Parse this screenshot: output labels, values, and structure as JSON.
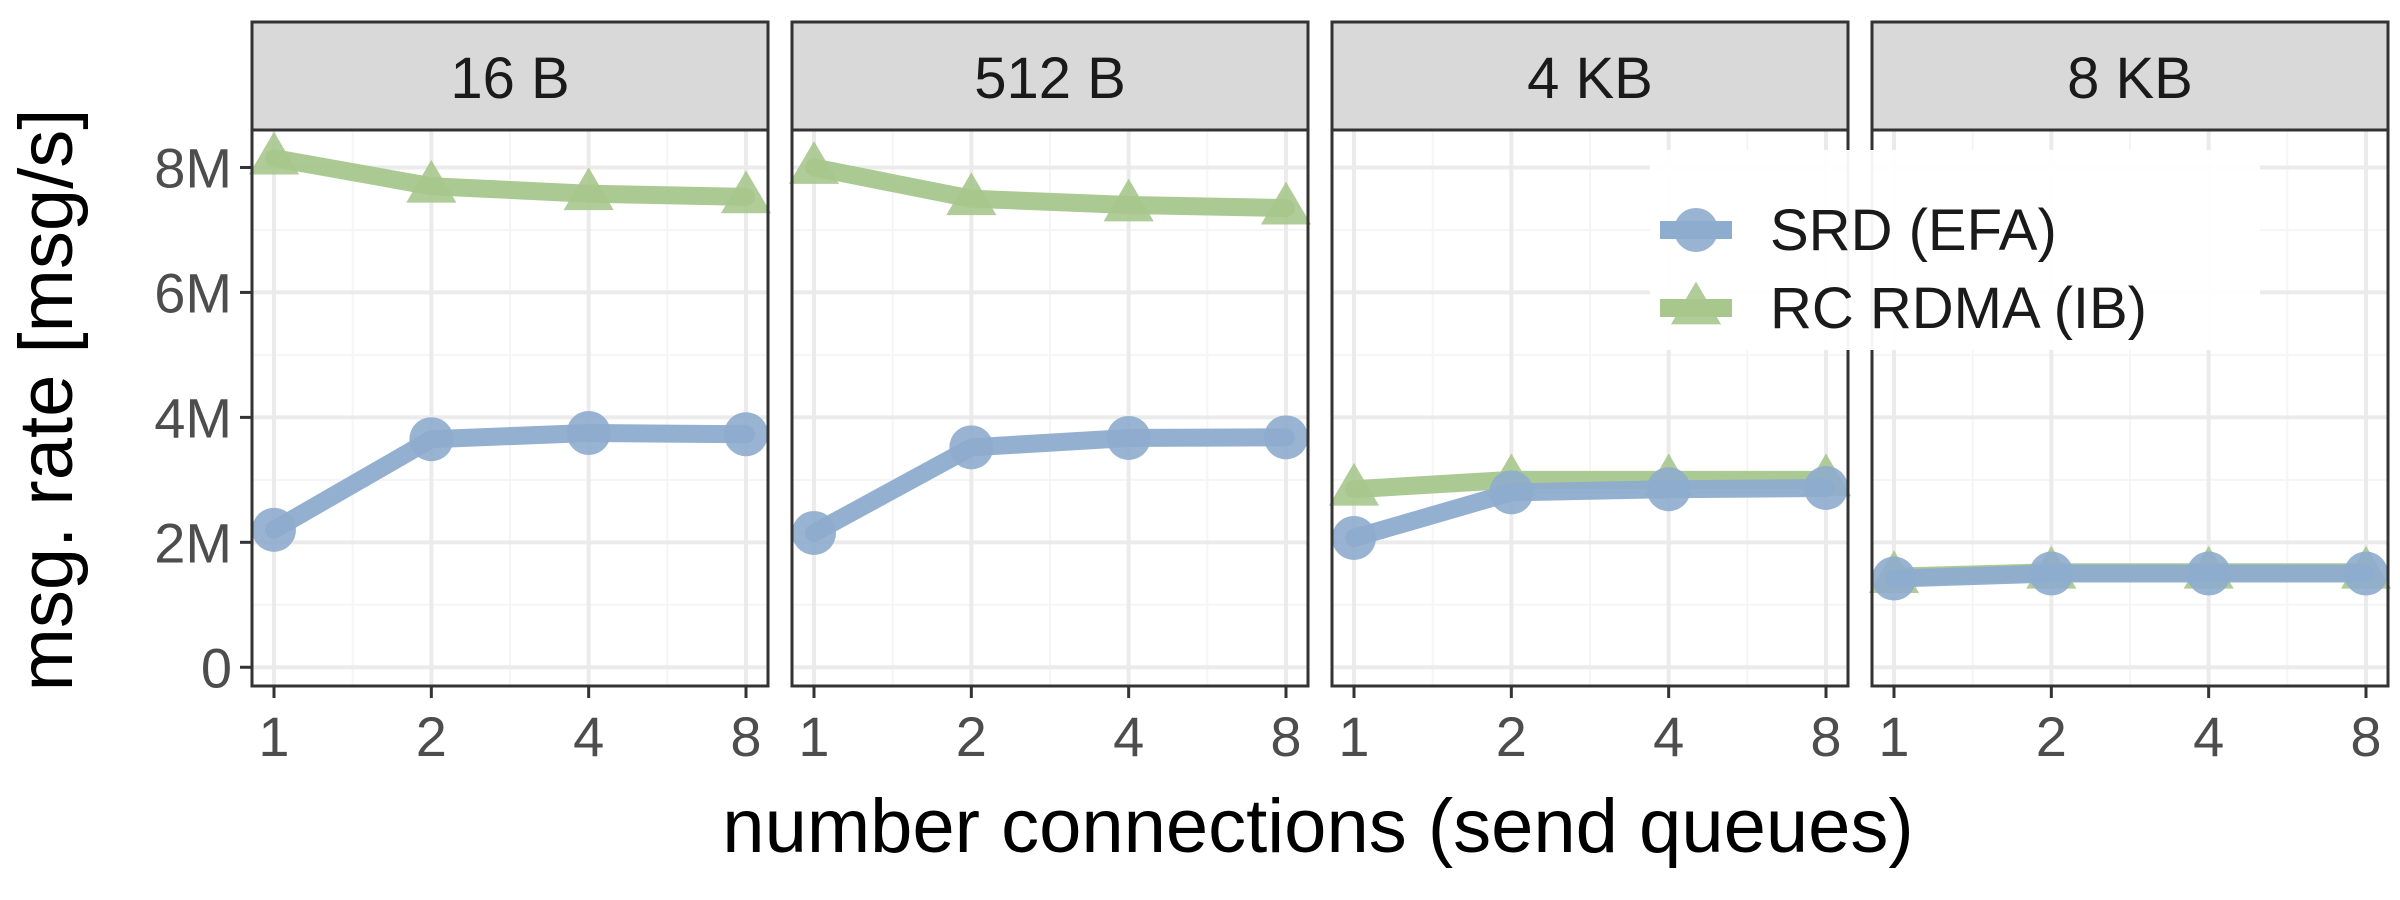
{
  "chart_data": {
    "type": "line",
    "facet_by": "message size",
    "panels": [
      {
        "label": "16 B",
        "x": [
          "1",
          "2",
          "4",
          "8"
        ],
        "series": [
          {
            "name": "SRD (EFA)",
            "values": [
              2.2,
              3.65,
              3.75,
              3.73
            ]
          },
          {
            "name": "RC RDMA (IB)",
            "values": [
              8.15,
              7.7,
              7.58,
              7.53
            ]
          }
        ]
      },
      {
        "label": "512 B",
        "x": [
          "1",
          "2",
          "4",
          "8"
        ],
        "series": [
          {
            "name": "SRD (EFA)",
            "values": [
              2.15,
              3.52,
              3.67,
              3.68
            ]
          },
          {
            "name": "RC RDMA (IB)",
            "values": [
              8.0,
              7.5,
              7.4,
              7.35
            ]
          }
        ]
      },
      {
        "label": "4 KB",
        "x": [
          "1",
          "2",
          "4",
          "8"
        ],
        "series": [
          {
            "name": "SRD (EFA)",
            "values": [
              2.07,
              2.8,
              2.85,
              2.87
            ]
          },
          {
            "name": "RC RDMA (IB)",
            "values": [
              2.85,
              3.0,
              3.0,
              3.0
            ]
          }
        ]
      },
      {
        "label": "8 KB",
        "x": [
          "1",
          "2",
          "4",
          "8"
        ],
        "series": [
          {
            "name": "SRD (EFA)",
            "values": [
              1.42,
              1.5,
              1.5,
              1.5
            ]
          },
          {
            "name": "RC RDMA (IB)",
            "values": [
              1.45,
              1.52,
              1.52,
              1.52
            ]
          }
        ]
      }
    ],
    "xlabel": "number connections (send queues)",
    "ylabel": "msg. rate [msg/s]",
    "yticks": [
      0,
      2,
      4,
      6,
      8
    ],
    "ytick_labels": [
      "0",
      "2M",
      "4M",
      "6M",
      "8M"
    ],
    "ylim": [
      -0.3,
      8.6
    ],
    "grid": true,
    "legend": {
      "placement": "top-right",
      "entries": [
        {
          "name": "SRD (EFA)",
          "marker": "circle"
        },
        {
          "name": "RC RDMA (IB)",
          "marker": "triangle"
        }
      ]
    },
    "colors": {
      "SRD (EFA)": "#8eaccd",
      "RC RDMA (IB)": "#a7c78d",
      "strip_background": "#d9d9d9",
      "grid_major": "#ebebeb",
      "grid_minor": "#f5f5f5"
    }
  }
}
